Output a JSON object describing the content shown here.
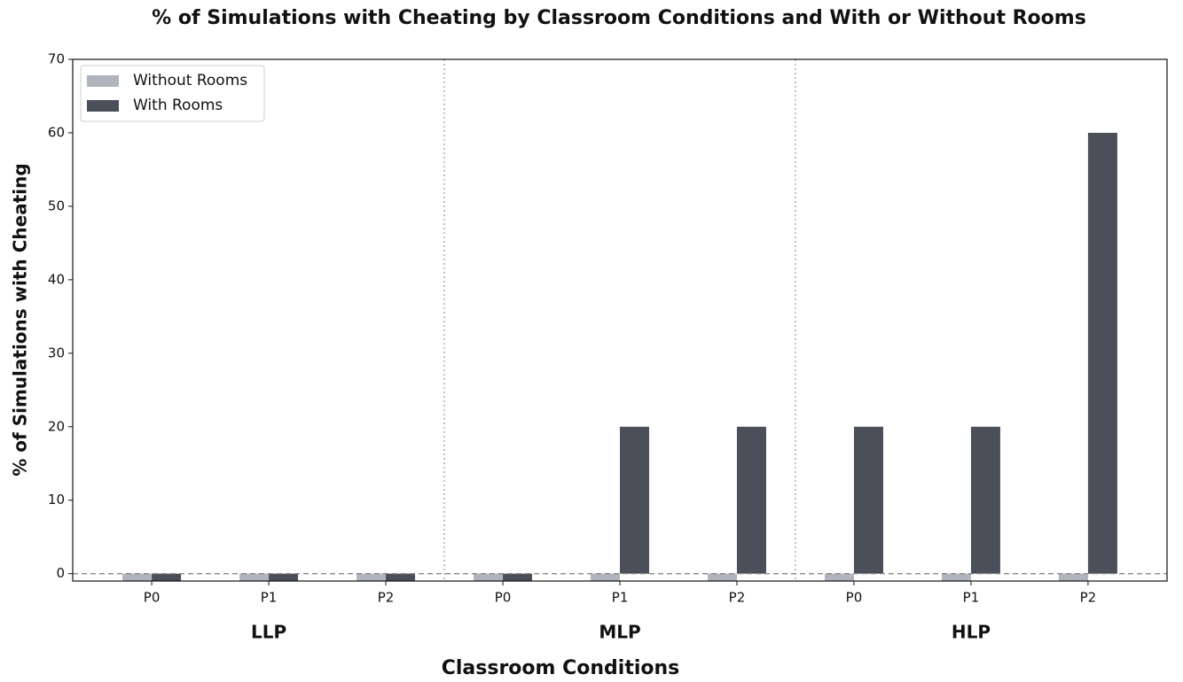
{
  "chart_data": {
    "type": "bar",
    "title": "% of Simulations with Cheating by Classroom Conditions and With or Without Rooms",
    "x_label": "Classroom Conditions",
    "y_label": "% of Simulations with Cheating",
    "categories": [
      "P0",
      "P1",
      "P2",
      "P0",
      "P1",
      "P2",
      "P0",
      "P1",
      "P2"
    ],
    "groups": [
      "LLP",
      "MLP",
      "HLP"
    ],
    "series": [
      {
        "name": "Without Rooms",
        "color": "#b0b4bd",
        "values": [
          -1,
          -1,
          -1,
          -1,
          -1,
          -1,
          -1,
          -1,
          -1
        ]
      },
      {
        "name": "With Rooms",
        "color": "#4b4f5a",
        "values": [
          -1,
          -1,
          -1,
          -1,
          20,
          20,
          20,
          20,
          60
        ]
      }
    ],
    "ylim": [
      -1,
      70
    ],
    "yticks": [
      0,
      10,
      20,
      30,
      40,
      50,
      60,
      70
    ],
    "reference_line": 0,
    "legend": "upper-left"
  }
}
